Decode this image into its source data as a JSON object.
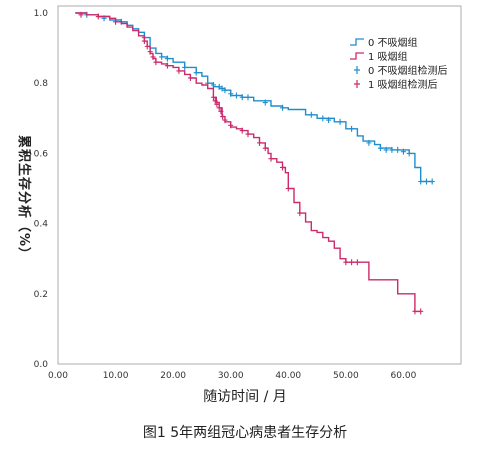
{
  "chart_data": {
    "type": "line",
    "subtype": "kaplan-meier",
    "xlabel": "随访时间 / 月",
    "ylabel": "累积生存分析（%）",
    "caption": "图1  5年两组冠心病患者生存分析",
    "xlim": [
      0,
      70
    ],
    "ylim": [
      0,
      1.02
    ],
    "x_ticks": [
      "0.00",
      "10.00",
      "20.00",
      "30.00",
      "40.00",
      "50.00",
      "60.00"
    ],
    "y_ticks": [
      "0.0",
      "0.2",
      "0.4",
      "0.6",
      "0.8",
      "1.0"
    ],
    "grid": false,
    "legend_position": "top-right",
    "legend": [
      {
        "label": "0 不吸烟组",
        "series": 0,
        "kind": "line"
      },
      {
        "label": "1 吸烟组",
        "series": 1,
        "kind": "line"
      },
      {
        "label": "0 不吸烟组检测后",
        "series": 0,
        "kind": "censor"
      },
      {
        "label": "1 吸烟组检测后",
        "series": 1,
        "kind": "censor"
      }
    ],
    "series": [
      {
        "color": "#1f8ecf",
        "steps": [
          [
            3,
            1.0
          ],
          [
            5,
            0.995
          ],
          [
            7,
            0.99
          ],
          [
            9,
            0.98
          ],
          [
            11,
            0.975
          ],
          [
            12,
            0.965
          ],
          [
            13,
            0.955
          ],
          [
            14,
            0.945
          ],
          [
            15,
            0.93
          ],
          [
            16,
            0.9
          ],
          [
            17,
            0.885
          ],
          [
            18,
            0.875
          ],
          [
            19,
            0.87
          ],
          [
            20,
            0.86
          ],
          [
            22,
            0.845
          ],
          [
            24,
            0.83
          ],
          [
            25,
            0.82
          ],
          [
            26,
            0.8
          ],
          [
            27,
            0.79
          ],
          [
            28,
            0.785
          ],
          [
            29,
            0.78
          ],
          [
            30,
            0.765
          ],
          [
            32,
            0.76
          ],
          [
            34,
            0.75
          ],
          [
            37,
            0.735
          ],
          [
            39,
            0.73
          ],
          [
            40,
            0.725
          ],
          [
            43,
            0.71
          ],
          [
            45,
            0.7
          ],
          [
            48,
            0.69
          ],
          [
            50,
            0.67
          ],
          [
            52,
            0.65
          ],
          [
            53,
            0.635
          ],
          [
            55,
            0.625
          ],
          [
            56,
            0.615
          ],
          [
            58,
            0.61
          ],
          [
            61,
            0.6
          ],
          [
            62,
            0.56
          ],
          [
            63,
            0.52
          ],
          [
            64,
            0.52
          ],
          [
            65,
            0.52
          ]
        ],
        "censored": [
          [
            5,
            0.995
          ],
          [
            8,
            0.985
          ],
          [
            11,
            0.975
          ],
          [
            15,
            0.93
          ],
          [
            18,
            0.875
          ],
          [
            19,
            0.87
          ],
          [
            22,
            0.845
          ],
          [
            24,
            0.83
          ],
          [
            26,
            0.8
          ],
          [
            27,
            0.795
          ],
          [
            28,
            0.79
          ],
          [
            28.5,
            0.785
          ],
          [
            29,
            0.78
          ],
          [
            30,
            0.77
          ],
          [
            31,
            0.765
          ],
          [
            32,
            0.76
          ],
          [
            33,
            0.76
          ],
          [
            36,
            0.745
          ],
          [
            39,
            0.73
          ],
          [
            44,
            0.71
          ],
          [
            46,
            0.7
          ],
          [
            47,
            0.695
          ],
          [
            49,
            0.69
          ],
          [
            51,
            0.67
          ],
          [
            54,
            0.63
          ],
          [
            56,
            0.615
          ],
          [
            57,
            0.61
          ],
          [
            58,
            0.61
          ],
          [
            59,
            0.61
          ],
          [
            60,
            0.605
          ],
          [
            61,
            0.6
          ],
          [
            63,
            0.52
          ],
          [
            64,
            0.52
          ],
          [
            65,
            0.52
          ]
        ]
      },
      {
        "color": "#cc2a6b",
        "steps": [
          [
            3,
            1.0
          ],
          [
            5,
            0.995
          ],
          [
            7,
            0.99
          ],
          [
            9,
            0.985
          ],
          [
            10,
            0.975
          ],
          [
            11,
            0.97
          ],
          [
            12,
            0.96
          ],
          [
            13,
            0.95
          ],
          [
            14,
            0.935
          ],
          [
            15,
            0.92
          ],
          [
            15.5,
            0.905
          ],
          [
            16,
            0.885
          ],
          [
            16.5,
            0.87
          ],
          [
            17,
            0.86
          ],
          [
            18,
            0.855
          ],
          [
            19,
            0.85
          ],
          [
            20,
            0.845
          ],
          [
            21,
            0.835
          ],
          [
            22,
            0.825
          ],
          [
            23,
            0.815
          ],
          [
            24,
            0.8
          ],
          [
            25,
            0.795
          ],
          [
            26,
            0.785
          ],
          [
            27,
            0.76
          ],
          [
            27.5,
            0.745
          ],
          [
            28,
            0.73
          ],
          [
            28.5,
            0.705
          ],
          [
            29,
            0.69
          ],
          [
            30,
            0.675
          ],
          [
            31,
            0.67
          ],
          [
            32,
            0.665
          ],
          [
            33,
            0.655
          ],
          [
            34,
            0.645
          ],
          [
            35,
            0.63
          ],
          [
            36,
            0.615
          ],
          [
            36.5,
            0.6
          ],
          [
            37,
            0.585
          ],
          [
            38,
            0.575
          ],
          [
            39,
            0.56
          ],
          [
            39.5,
            0.545
          ],
          [
            40,
            0.5
          ],
          [
            41,
            0.46
          ],
          [
            42,
            0.43
          ],
          [
            43,
            0.405
          ],
          [
            44,
            0.38
          ],
          [
            45,
            0.375
          ],
          [
            46,
            0.36
          ],
          [
            47,
            0.35
          ],
          [
            48,
            0.33
          ],
          [
            49,
            0.3
          ],
          [
            50,
            0.29
          ],
          [
            51,
            0.29
          ],
          [
            52,
            0.29
          ],
          [
            54,
            0.24
          ],
          [
            57,
            0.24
          ],
          [
            59,
            0.2
          ],
          [
            62,
            0.15
          ],
          [
            63,
            0.15
          ]
        ],
        "censored": [
          [
            4,
            0.995
          ],
          [
            7,
            0.99
          ],
          [
            10,
            0.975
          ],
          [
            15,
            0.92
          ],
          [
            15.5,
            0.905
          ],
          [
            16,
            0.89
          ],
          [
            16.5,
            0.875
          ],
          [
            17,
            0.86
          ],
          [
            19,
            0.85
          ],
          [
            21,
            0.835
          ],
          [
            23,
            0.815
          ],
          [
            27,
            0.76
          ],
          [
            27.3,
            0.75
          ],
          [
            27.6,
            0.74
          ],
          [
            28,
            0.73
          ],
          [
            28.3,
            0.72
          ],
          [
            28.6,
            0.705
          ],
          [
            29,
            0.695
          ],
          [
            30,
            0.68
          ],
          [
            32,
            0.665
          ],
          [
            33,
            0.655
          ],
          [
            35,
            0.63
          ],
          [
            36,
            0.615
          ],
          [
            37,
            0.585
          ],
          [
            39,
            0.56
          ],
          [
            40,
            0.5
          ],
          [
            42,
            0.43
          ],
          [
            50,
            0.29
          ],
          [
            51,
            0.29
          ],
          [
            52,
            0.29
          ],
          [
            62,
            0.15
          ],
          [
            63,
            0.15
          ]
        ]
      }
    ]
  }
}
